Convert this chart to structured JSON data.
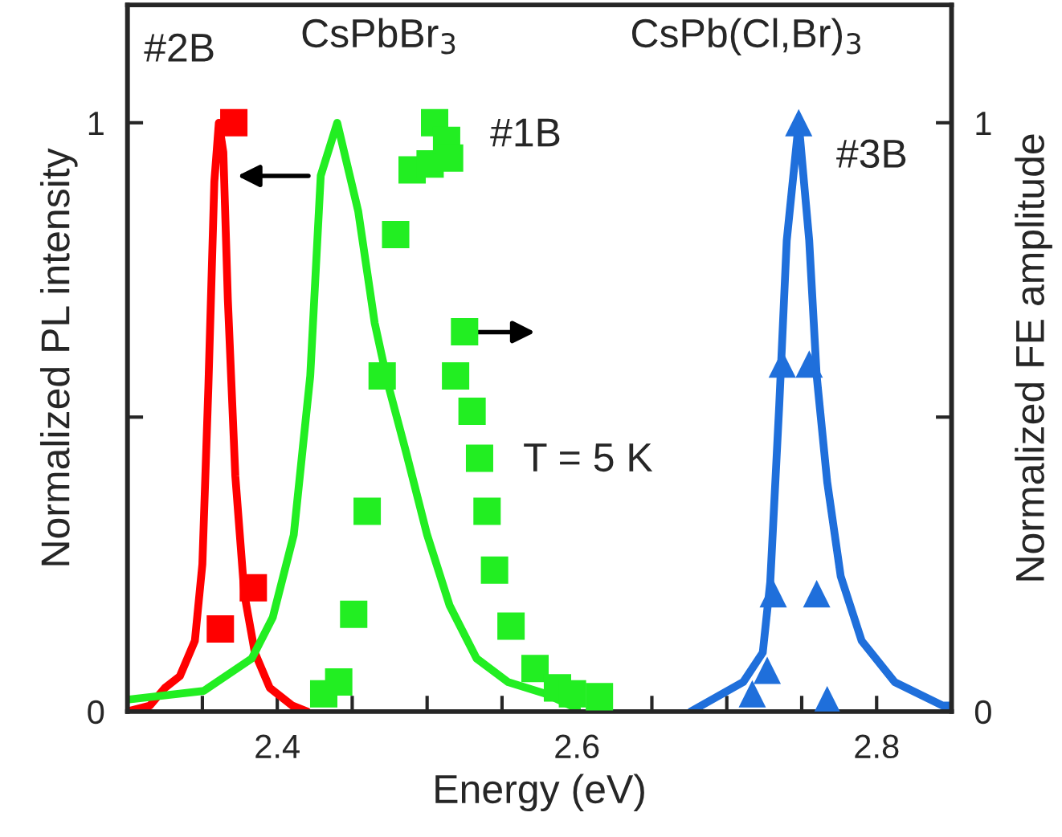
{
  "chart_data": {
    "type": "line",
    "xlabel": "Energy (eV)",
    "ylabel": "Normalized PL intensity",
    "y2label": "Normalized FE amplitude",
    "xlim": [
      2.3,
      2.85
    ],
    "xticks": [
      {
        "value": 2.35,
        "label": null
      },
      2.4,
      {
        "value": 2.45,
        "label": null
      },
      {
        "value": 2.5,
        "label": null
      },
      {
        "value": 2.55,
        "label": null
      },
      2.6,
      {
        "value": 2.65,
        "label": null
      },
      {
        "value": 2.7,
        "label": null
      },
      {
        "value": 2.75,
        "label": null
      },
      2.8
    ],
    "ylim": [
      0,
      1.2
    ],
    "yticks": [
      0,
      {
        "value": 0.5,
        "label": null
      },
      1
    ],
    "y2lim": [
      0,
      1.2
    ],
    "y2ticks": [
      0,
      {
        "value": 0.5,
        "label": null
      },
      1
    ],
    "grid": false,
    "legend": false,
    "series": [
      {
        "color": "#ff0000",
        "marker": "none",
        "x": [
          2.3,
          2.315,
          2.325,
          2.335,
          2.345,
          2.35,
          2.354,
          2.358,
          2.361,
          2.364,
          2.367,
          2.372,
          2.378,
          2.385,
          2.395,
          2.41,
          2.42
        ],
        "values": [
          0.0,
          0.01,
          0.04,
          0.06,
          0.12,
          0.25,
          0.55,
          0.9,
          1.0,
          0.95,
          0.7,
          0.4,
          0.2,
          0.1,
          0.04,
          0.01,
          0.0
        ]
      },
      {
        "color": "#22ee22",
        "marker": "none",
        "x": [
          2.3,
          2.351,
          2.383,
          2.397,
          2.411,
          2.422,
          2.429,
          2.44,
          2.454,
          2.465,
          2.474,
          2.486,
          2.5,
          2.515,
          2.533,
          2.554,
          2.579,
          2.6
        ],
        "values": [
          0.02,
          0.035,
          0.09,
          0.16,
          0.3,
          0.57,
          0.91,
          1.0,
          0.85,
          0.66,
          0.555,
          0.44,
          0.3,
          0.18,
          0.09,
          0.05,
          0.03,
          0.005
        ]
      },
      {
        "color": "#1f6fdb",
        "marker": "none",
        "x": [
          2.676,
          2.711,
          2.724,
          2.729,
          2.735,
          2.74,
          2.748,
          2.755,
          2.76,
          2.767,
          2.776,
          2.79,
          2.812,
          2.844,
          2.85
        ],
        "values": [
          0.0,
          0.05,
          0.1,
          0.22,
          0.52,
          0.8,
          1.0,
          0.8,
          0.57,
          0.39,
          0.23,
          0.12,
          0.05,
          0.01,
          0.01
        ]
      },
      {
        "type": "scatter",
        "axis": "y2",
        "color": "#ff0000",
        "marker": "square",
        "x": [
          2.362,
          2.371,
          2.384
        ],
        "values": [
          0.14,
          1.0,
          0.21
        ]
      },
      {
        "type": "scatter",
        "axis": "y2",
        "color": "#22ee22",
        "marker": "square",
        "x": [
          2.431,
          2.441,
          2.451,
          2.46,
          2.47,
          2.479,
          2.49,
          2.502,
          2.505,
          2.513,
          2.515,
          2.519,
          2.525,
          2.53,
          2.535,
          2.54,
          2.545,
          2.556,
          2.572,
          2.587,
          2.597,
          2.615
        ],
        "values": [
          0.03,
          0.05,
          0.165,
          0.34,
          0.57,
          0.81,
          0.92,
          0.93,
          1.0,
          0.97,
          0.94,
          0.57,
          0.645,
          0.51,
          0.43,
          0.34,
          0.24,
          0.145,
          0.073,
          0.04,
          0.03,
          0.025
        ]
      },
      {
        "type": "scatter",
        "axis": "y2",
        "color": "#1f6fdb",
        "marker": "triangle",
        "x": [
          2.717,
          2.727,
          2.731,
          2.737,
          2.748,
          2.755,
          2.76,
          2.767
        ],
        "values": [
          0.03,
          0.07,
          0.2,
          0.59,
          1.0,
          0.59,
          0.2,
          0.02
        ]
      }
    ],
    "annotations": [
      "#2B",
      "CsPbBr$_{3}$",
      "#1B",
      "CsPb(Cl,Br)$_{3}$",
      "#3B",
      "T = 5 K"
    ]
  }
}
